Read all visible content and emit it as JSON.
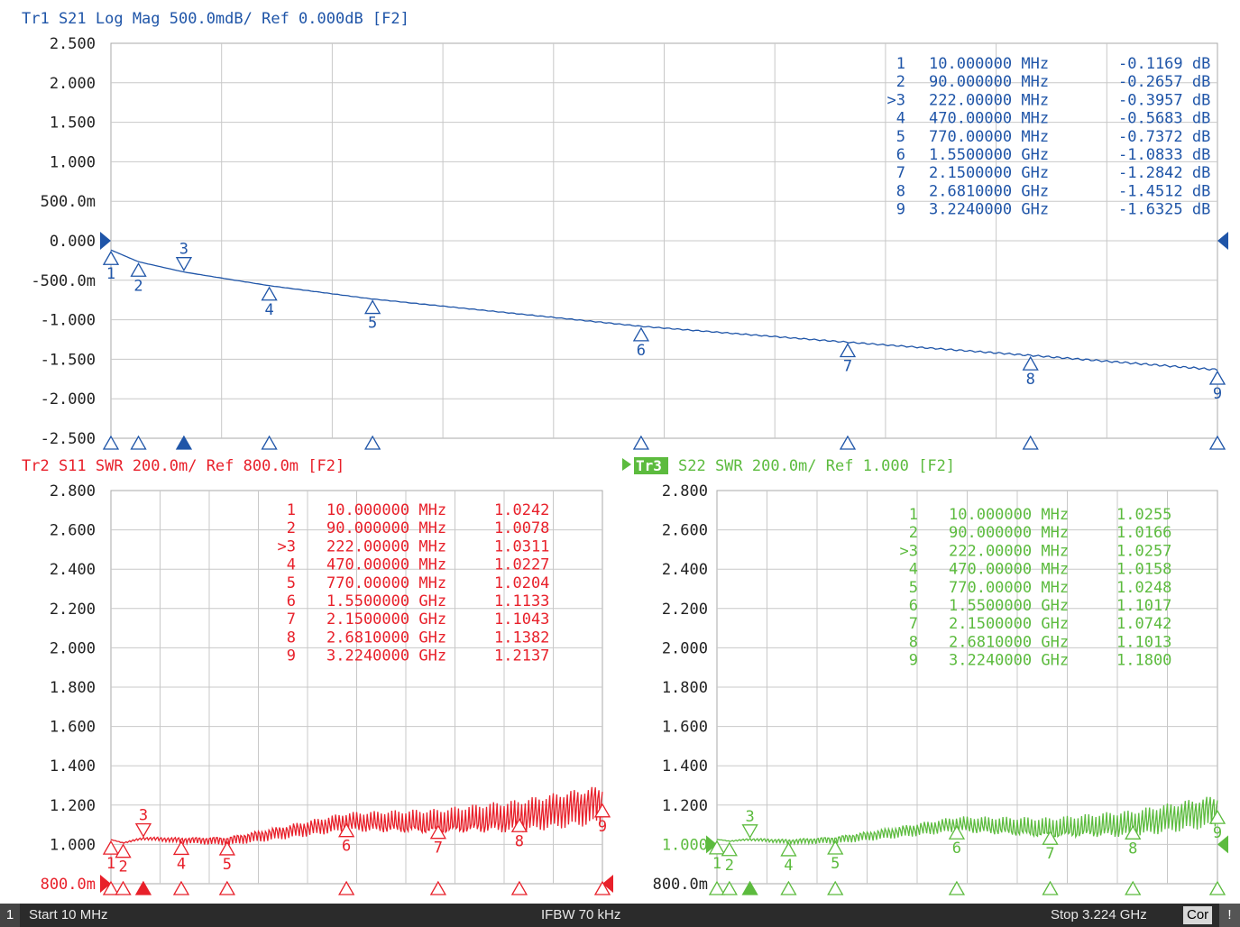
{
  "status_bar": {
    "channel": "1",
    "start": "Start 10 MHz",
    "ifbw": "IFBW 70 kHz",
    "stop": "Stop 3.224 GHz",
    "correction": "Cor",
    "warning": "!"
  },
  "chart_data": [
    {
      "id": "tr1",
      "type": "line",
      "title": "Tr1 S21 Log Mag 500.0mdB/ Ref 0.000dB [F2]",
      "color": "#1f55a8",
      "ylim": [
        -2.5,
        2.5
      ],
      "xlim_hz": [
        10000000,
        3224000000
      ],
      "ytick_labels": [
        "2.500",
        "2.000",
        "1.500",
        "1.000",
        "500.0m",
        "0.000",
        "-500.0m",
        "-1.000",
        "-1.500",
        "-2.000",
        "-2.500"
      ],
      "ref_value": 0.0,
      "grid": true,
      "series": [
        {
          "x": [
            10000000,
            90000000,
            222000000,
            470000000,
            770000000,
            1550000000,
            2150000000,
            2681000000,
            3224000000
          ],
          "values": [
            -0.1169,
            -0.2657,
            -0.3957,
            -0.5683,
            -0.7372,
            -1.0833,
            -1.2842,
            -1.4512,
            -1.6325
          ]
        }
      ],
      "markers": [
        {
          "label": "1",
          "freq": "10.000000 MHz",
          "value": "-0.1169 dB"
        },
        {
          "label": "2",
          "freq": "90.000000 MHz",
          "value": "-0.2657 dB"
        },
        {
          "label": ">3",
          "freq": "222.00000 MHz",
          "value": "-0.3957 dB"
        },
        {
          "label": "4",
          "freq": "470.00000 MHz",
          "value": "-0.5683 dB"
        },
        {
          "label": "5",
          "freq": "770.00000 MHz",
          "value": "-0.7372 dB"
        },
        {
          "label": "6",
          "freq": "1.5500000 GHz",
          "value": "-1.0833 dB"
        },
        {
          "label": "7",
          "freq": "2.1500000 GHz",
          "value": "-1.2842 dB"
        },
        {
          "label": "8",
          "freq": "2.6810000 GHz",
          "value": "-1.4512 dB"
        },
        {
          "label": "9",
          "freq": "3.2240000 GHz",
          "value": "-1.6325 dB"
        }
      ]
    },
    {
      "id": "tr2",
      "type": "line",
      "title": "Tr2 S11 SWR 200.0m/ Ref 800.0m [F2]",
      "color": "#e8202a",
      "ylim": [
        0.8,
        2.8
      ],
      "xlim_hz": [
        10000000,
        3224000000
      ],
      "ytick_labels": [
        "2.800",
        "2.600",
        "2.400",
        "2.200",
        "2.000",
        "1.800",
        "1.600",
        "1.400",
        "1.200",
        "1.000",
        "800.0m"
      ],
      "ref_value": 0.8,
      "grid": true,
      "ripple": 0.11,
      "series": [
        {
          "x": [
            10000000,
            90000000,
            222000000,
            470000000,
            770000000,
            1550000000,
            2150000000,
            2681000000,
            3224000000
          ],
          "values": [
            1.0242,
            1.0078,
            1.0311,
            1.0227,
            1.0204,
            1.1133,
            1.1043,
            1.1382,
            1.2137
          ]
        }
      ],
      "markers": [
        {
          "label": "1",
          "freq": "10.000000 MHz",
          "value": "1.0242"
        },
        {
          "label": "2",
          "freq": "90.000000 MHz",
          "value": "1.0078"
        },
        {
          "label": ">3",
          "freq": "222.00000 MHz",
          "value": "1.0311"
        },
        {
          "label": "4",
          "freq": "470.00000 MHz",
          "value": "1.0227"
        },
        {
          "label": "5",
          "freq": "770.00000 MHz",
          "value": "1.0204"
        },
        {
          "label": "6",
          "freq": "1.5500000 GHz",
          "value": "1.1133"
        },
        {
          "label": "7",
          "freq": "2.1500000 GHz",
          "value": "1.1043"
        },
        {
          "label": "8",
          "freq": "2.6810000 GHz",
          "value": "1.1382"
        },
        {
          "label": "9",
          "freq": "3.2240000 GHz",
          "value": "1.2137"
        }
      ]
    },
    {
      "id": "tr3",
      "type": "line",
      "title_badge": "Tr3",
      "title": "S22 SWR 200.0m/ Ref 1.000 [F2]",
      "color": "#5cbb3e",
      "ylim": [
        0.8,
        2.8
      ],
      "xlim_hz": [
        10000000,
        3224000000
      ],
      "ytick_labels": [
        "2.800",
        "2.600",
        "2.400",
        "2.200",
        "2.000",
        "1.800",
        "1.600",
        "1.400",
        "1.200",
        "1.000",
        "800.0m"
      ],
      "ref_value": 1.0,
      "grid": true,
      "ripple": 0.09,
      "series": [
        {
          "x": [
            10000000,
            90000000,
            222000000,
            470000000,
            770000000,
            1550000000,
            2150000000,
            2681000000,
            3224000000
          ],
          "values": [
            1.0255,
            1.0166,
            1.0257,
            1.0158,
            1.0248,
            1.1017,
            1.0742,
            1.1013,
            1.18
          ]
        }
      ],
      "markers": [
        {
          "label": "1",
          "freq": "10.000000 MHz",
          "value": "1.0255"
        },
        {
          "label": "2",
          "freq": "90.000000 MHz",
          "value": "1.0166"
        },
        {
          "label": ">3",
          "freq": "222.00000 MHz",
          "value": "1.0257"
        },
        {
          "label": "4",
          "freq": "470.00000 MHz",
          "value": "1.0158"
        },
        {
          "label": "5",
          "freq": "770.00000 MHz",
          "value": "1.0248"
        },
        {
          "label": "6",
          "freq": "1.5500000 GHz",
          "value": "1.1017"
        },
        {
          "label": "7",
          "freq": "2.1500000 GHz",
          "value": "1.0742"
        },
        {
          "label": "8",
          "freq": "2.6810000 GHz",
          "value": "1.1013"
        },
        {
          "label": "9",
          "freq": "3.2240000 GHz",
          "value": "1.1800"
        }
      ]
    }
  ]
}
